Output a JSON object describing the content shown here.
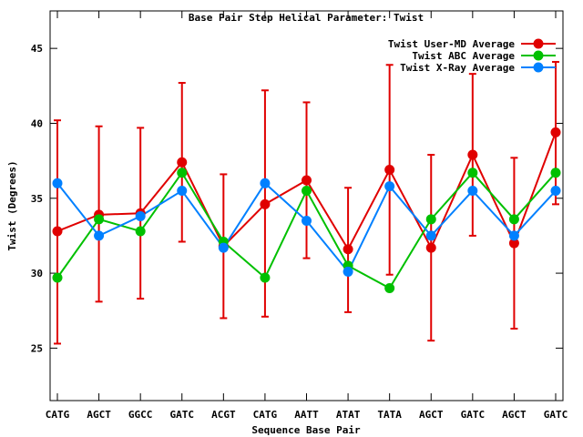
{
  "chart_data": {
    "type": "line",
    "title": "Base Pair Step Helical Parameter: Twist",
    "xlabel": "Sequence Base Pair",
    "ylabel": "Twist (Degrees)",
    "categories": [
      "CATG",
      "AGCT",
      "GGCC",
      "GATC",
      "ACGT",
      "CATG",
      "AATT",
      "ATAT",
      "TATA",
      "AGCT",
      "GATC",
      "AGCT",
      "GATC"
    ],
    "ylim": [
      21.5,
      47.5
    ],
    "yticks": [
      25,
      30,
      35,
      40,
      45
    ],
    "grid": false,
    "legend": "top-right",
    "series": [
      {
        "name": "Twist User-MD Average",
        "color": "#e00000",
        "values": [
          32.8,
          33.9,
          34.0,
          37.4,
          31.8,
          34.6,
          36.2,
          31.6,
          36.9,
          31.7,
          37.9,
          32.0,
          39.4
        ],
        "error_low": [
          25.3,
          28.1,
          28.3,
          32.1,
          27.0,
          27.1,
          31.0,
          27.4,
          29.9,
          25.5,
          32.5,
          26.3,
          34.6
        ],
        "error_high": [
          40.2,
          39.8,
          39.7,
          42.7,
          36.6,
          42.2,
          41.4,
          35.7,
          43.9,
          37.9,
          43.3,
          37.7,
          44.1
        ]
      },
      {
        "name": "Twist ABC Average",
        "color": "#00c000",
        "values": [
          29.7,
          33.6,
          32.8,
          36.7,
          32.1,
          29.7,
          35.5,
          30.5,
          29.0,
          33.6,
          36.7,
          33.6,
          36.7
        ]
      },
      {
        "name": "Twist X-Ray Average",
        "color": "#0080ff",
        "values": [
          36.0,
          32.5,
          33.8,
          35.5,
          31.7,
          36.0,
          33.5,
          30.1,
          35.8,
          32.5,
          35.5,
          32.5,
          35.5
        ]
      }
    ]
  }
}
